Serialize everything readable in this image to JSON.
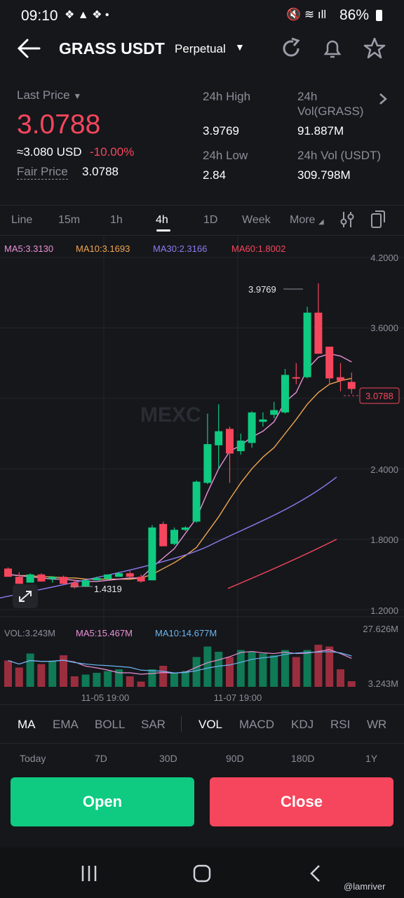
{
  "status": {
    "time": "09:10",
    "battery": "86%"
  },
  "header": {
    "pair": "GRASS USDT",
    "contract": "Perpetual"
  },
  "price": {
    "last_label": "Last Price",
    "last": "3.0788",
    "usd": "≈3.080 USD",
    "change": "-10.00%",
    "fair_label": "Fair Price",
    "fair": "3.0788"
  },
  "stats": {
    "high_label": "24h High",
    "high": "3.9769",
    "low_label": "24h Low",
    "low": "2.84",
    "vol_label_1": "24h",
    "vol_label_2": "Vol(GRASS)",
    "vol": "91.887M",
    "volusdt_label": "24h Vol (USDT)",
    "volusdt": "309.798M"
  },
  "tabs": [
    "Line",
    "15m",
    "1h",
    "4h",
    "1D",
    "Week",
    "More"
  ],
  "ma": {
    "ma5": "MA5:3.3130",
    "ma10": "MA10:3.1693",
    "ma30": "MA30:2.3166",
    "ma60": "MA60:1.8002"
  },
  "yaxis": [
    "4.2000",
    "3.6000",
    "3.0788",
    "2.4000",
    "1.8000",
    "1.2000"
  ],
  "high_marker": "3.9769",
  "low_marker": "1.4319",
  "watermark": "MEXC",
  "vol": {
    "vol": "VOL:3.243M",
    "ma5": "MA5:15.467M",
    "ma10": "MA10:14.677M",
    "max": "27.626M",
    "cur": "3.243M"
  },
  "xaxis": [
    "11-05 19:00",
    "11-07 19:00"
  ],
  "indicators": [
    "MA",
    "EMA",
    "BOLL",
    "SAR",
    "VOL",
    "MACD",
    "KDJ",
    "RSI",
    "WR"
  ],
  "ranges": [
    "Today",
    "7D",
    "30D",
    "90D",
    "180D",
    "1Y"
  ],
  "buttons": {
    "open": "Open",
    "close": "Close"
  },
  "watermark_user": "@lamriver",
  "colors": {
    "green": "#0ecb81",
    "red": "#f6465d",
    "bg": "#16171b"
  },
  "chart_data": {
    "type": "candlestick",
    "ylim": [
      1.2,
      4.2
    ],
    "candles": [
      {
        "o": 1.55,
        "h": 1.56,
        "l": 1.48,
        "c": 1.48
      },
      {
        "o": 1.48,
        "h": 1.52,
        "l": 1.42,
        "c": 1.42
      },
      {
        "o": 1.43,
        "h": 1.51,
        "l": 1.43,
        "c": 1.5
      },
      {
        "o": 1.5,
        "h": 1.51,
        "l": 1.44,
        "c": 1.44
      },
      {
        "o": 1.46,
        "h": 1.48,
        "l": 1.43,
        "c": 1.48
      },
      {
        "o": 1.48,
        "h": 1.49,
        "l": 1.41,
        "c": 1.42
      },
      {
        "o": 1.43,
        "h": 1.45,
        "l": 1.38,
        "c": 1.39
      },
      {
        "o": 1.4,
        "h": 1.46,
        "l": 1.4,
        "c": 1.45
      },
      {
        "o": 1.45,
        "h": 1.48,
        "l": 1.45,
        "c": 1.47
      },
      {
        "o": 1.46,
        "h": 1.5,
        "l": 1.45,
        "c": 1.5
      },
      {
        "o": 1.48,
        "h": 1.52,
        "l": 1.48,
        "c": 1.51
      },
      {
        "o": 1.51,
        "h": 1.53,
        "l": 1.47,
        "c": 1.48
      },
      {
        "o": 1.48,
        "h": 1.5,
        "l": 1.43,
        "c": 1.44
      },
      {
        "o": 1.45,
        "h": 1.92,
        "l": 1.45,
        "c": 1.9
      },
      {
        "o": 1.93,
        "h": 1.95,
        "l": 1.74,
        "c": 1.74
      },
      {
        "o": 1.76,
        "h": 1.9,
        "l": 1.75,
        "c": 1.88
      },
      {
        "o": 1.88,
        "h": 1.91,
        "l": 1.87,
        "c": 1.9
      },
      {
        "o": 1.95,
        "h": 2.3,
        "l": 1.94,
        "c": 2.29
      },
      {
        "o": 2.28,
        "h": 2.87,
        "l": 2.27,
        "c": 2.61
      },
      {
        "o": 2.6,
        "h": 2.95,
        "l": 2.4,
        "c": 2.72
      },
      {
        "o": 2.74,
        "h": 2.76,
        "l": 2.28,
        "c": 2.53
      },
      {
        "o": 2.55,
        "h": 2.7,
        "l": 2.52,
        "c": 2.64
      },
      {
        "o": 2.62,
        "h": 2.89,
        "l": 2.58,
        "c": 2.88
      },
      {
        "o": 2.8,
        "h": 2.88,
        "l": 2.76,
        "c": 2.82
      },
      {
        "o": 2.86,
        "h": 2.97,
        "l": 2.83,
        "c": 2.9
      },
      {
        "o": 2.88,
        "h": 3.25,
        "l": 2.87,
        "c": 3.2
      },
      {
        "o": 3.18,
        "h": 3.3,
        "l": 3.12,
        "c": 3.17
      },
      {
        "o": 3.18,
        "h": 3.78,
        "l": 3.17,
        "c": 3.73
      },
      {
        "o": 3.73,
        "h": 3.98,
        "l": 3.38,
        "c": 3.38
      },
      {
        "o": 3.44,
        "h": 3.44,
        "l": 3.12,
        "c": 3.17
      },
      {
        "o": 3.18,
        "h": 3.3,
        "l": 3.06,
        "c": 3.15
      },
      {
        "o": 3.14,
        "h": 3.22,
        "l": 3.04,
        "c": 3.08
      }
    ],
    "volume": [
      15,
      11,
      19,
      13,
      15,
      18,
      6,
      7,
      8,
      9,
      10,
      6,
      3,
      10,
      12,
      8,
      9,
      17,
      23,
      20,
      17,
      21,
      20,
      19,
      18,
      21,
      17,
      21,
      24,
      23,
      10,
      3.2
    ],
    "ma5_line": [
      1.5,
      1.49,
      1.48,
      1.47,
      1.46,
      1.46,
      1.45,
      1.44,
      1.44,
      1.45,
      1.46,
      1.47,
      1.47,
      1.56,
      1.64,
      1.72,
      1.85,
      1.98,
      2.2,
      2.4,
      2.55,
      2.6,
      2.67,
      2.72,
      2.8,
      2.97,
      3.05,
      3.25,
      3.35,
      3.38,
      3.36,
      3.31
    ],
    "ma10_line": [
      1.5,
      1.49,
      1.49,
      1.48,
      1.48,
      1.47,
      1.47,
      1.46,
      1.46,
      1.46,
      1.46,
      1.46,
      1.47,
      1.5,
      1.55,
      1.6,
      1.66,
      1.73,
      1.86,
      1.99,
      2.14,
      2.28,
      2.4,
      2.5,
      2.58,
      2.7,
      2.82,
      2.95,
      3.05,
      3.12,
      3.15,
      3.17
    ]
  }
}
